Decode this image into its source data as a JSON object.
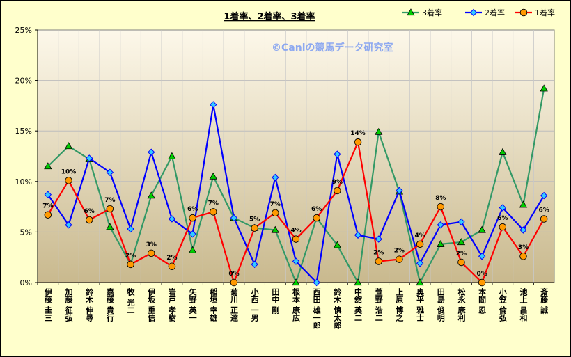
{
  "chart_data": {
    "type": "line",
    "title": "1着率、2着率、3着率",
    "watermark": "©Caniの競馬データ研究室",
    "legend_position": "top-right",
    "ylim": [
      0,
      25
    ],
    "y_ticks": [
      "0%",
      "5%",
      "10%",
      "15%",
      "20%",
      "25%"
    ],
    "y_tick_values": [
      0,
      5,
      10,
      15,
      20,
      25
    ],
    "grid": true,
    "categories": [
      "伊藤 圭三",
      "加藤 征弘",
      "鈴木 伸尋",
      "嘉藤 貴行",
      "牧 光二",
      "伊坂 重信",
      "岩戸 孝樹",
      "矢野 英一",
      "稲垣 幸雄",
      "菊川 正達",
      "小西 一男",
      "田中 剛",
      "根本 康広",
      "西田 雄一郎",
      "鈴木 慎太郎",
      "中舘 英二",
      "萱野 浩二",
      "上原 博之",
      "奥平 雅士",
      "田島 俊明",
      "松永 康利",
      "本間 忍",
      "小笠 倫弘",
      "池上 昌和",
      "斎藤 誠"
    ],
    "series": [
      {
        "name": "3着率",
        "color": "#339966",
        "marker": "triangle",
        "marker_color": "#00cc00",
        "values": [
          11.5,
          13.5,
          12.2,
          5.5,
          1.8,
          8.6,
          12.5,
          3.2,
          10.5,
          6.4,
          5.4,
          5.2,
          0,
          6.4,
          3.7,
          0,
          14.9,
          9.0,
          0,
          3.8,
          4.0,
          5.2,
          12.9,
          7.7,
          19.2
        ]
      },
      {
        "name": "2着率",
        "color": "#0000ff",
        "marker": "diamond",
        "marker_color": "#33ccff",
        "values": [
          8.7,
          5.7,
          12.3,
          10.9,
          5.3,
          12.9,
          6.3,
          4.8,
          17.6,
          6.4,
          1.8,
          10.4,
          2.1,
          0,
          12.7,
          4.7,
          4.3,
          9.1,
          1.9,
          5.7,
          6.0,
          2.6,
          7.4,
          5.2,
          8.6
        ]
      },
      {
        "name": "1着率",
        "color": "#ff0000",
        "marker": "circle",
        "marker_color": "#ff9900",
        "values": [
          6.7,
          10.1,
          6.2,
          7.3,
          1.8,
          2.9,
          1.6,
          6.4,
          7.0,
          0,
          5.4,
          6.9,
          4.3,
          6.4,
          9.1,
          13.9,
          2.1,
          2.3,
          3.8,
          7.5,
          2.0,
          0,
          5.5,
          2.6,
          6.3
        ],
        "data_labels": [
          "7%",
          "10%",
          "6%",
          "7%",
          "2%",
          "3%",
          "2%",
          "6%",
          "7%",
          "0%",
          "5%",
          "7%",
          "4%",
          "6%",
          "9%",
          "14%",
          "2%",
          "2%",
          "4%",
          "8%",
          "2%",
          "0%",
          "6%",
          "3%",
          "6%"
        ]
      }
    ]
  }
}
